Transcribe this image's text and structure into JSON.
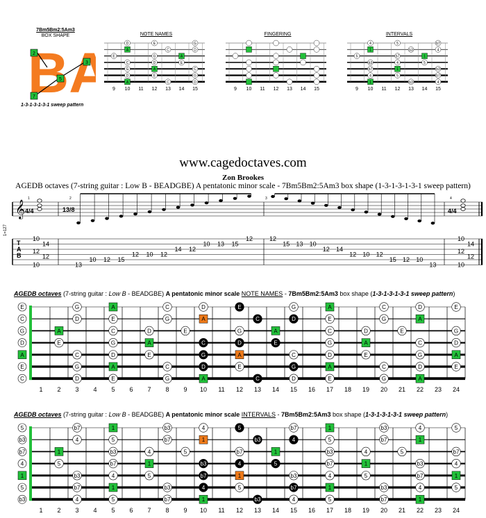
{
  "header": {
    "shape_code": "7Bm5Bm2:5Am3",
    "box_shape_label": "BOX SHAPE",
    "box_letters": "BA",
    "sweep_caption": "1-3-1-3-1-3-1 sweep pattern",
    "logo_dots": [
      "2",
      "3",
      "5",
      "7"
    ],
    "note_names_label": "NOTE NAMES",
    "fingering_label": "FINGERING",
    "intervals_label": "INTERVALS",
    "mini_frets": [
      "9",
      "10",
      "11",
      "12",
      "13",
      "14",
      "15"
    ]
  },
  "site": {
    "url": "www.cagedoctaves.com",
    "author": "Zon Brookes",
    "subtitle": "AGEDB octaves (7-string guitar : Low B - BEADGBE) A pentatonic minor scale  - 7Bm5Bm2:5Am3 box shape (1-3-1-3-1-3-1 sweep pattern)"
  },
  "notation": {
    "time1": "4/4",
    "time2": "13/8",
    "measure_numbers": [
      "1",
      "2",
      "3",
      "4"
    ],
    "side_label": "1=127",
    "tab_letters": "TAB",
    "m1_tab": [
      "10",
      "14",
      "12",
      "12",
      "10"
    ],
    "m2_tab": [
      "13",
      "10",
      "12",
      "15",
      "12",
      "10",
      "12",
      "14",
      "12",
      "10",
      "13",
      "15",
      "12"
    ],
    "m3_tab": [
      "12",
      "15",
      "13",
      "10",
      "12",
      "14",
      "12",
      "10",
      "12",
      "15",
      "12",
      "10",
      "13"
    ],
    "m4_tab": [
      "10",
      "14",
      "12",
      "12",
      "10"
    ]
  },
  "diagram1": {
    "title_a": "AGEDB octaves",
    "title_b": " (7-string guitar : ",
    "title_c": "Low B",
    "title_d": " - BEADGBE) ",
    "title_e": "A pentatonic minor scale ",
    "title_f": "NOTE NAMES",
    "title_g": " - ",
    "title_h": "7Bm5Bm2:5Am3",
    "title_i": " box shape (",
    "title_j": "1-3-1-3-1-3-1 sweep pattern",
    "title_k": ")"
  },
  "diagram2": {
    "title_a": "AGEDB octaves",
    "title_b": " (7-string guitar : ",
    "title_c": "Low B",
    "title_d": " - BEADGBE) ",
    "title_e": "A pentatonic minor scale ",
    "title_f": "INTERVALS",
    "title_g": " - ",
    "title_h": "7Bm5Bm2:5Am3",
    "title_i": " box shape (",
    "title_j": "1-3-1-3-1-3-1 sweep pattern",
    "title_k": ")"
  },
  "fret_numbers": [
    "1",
    "2",
    "3",
    "4",
    "5",
    "6",
    "7",
    "8",
    "9",
    "10",
    "11",
    "12",
    "13",
    "14",
    "15",
    "16",
    "17",
    "18",
    "19",
    "20",
    "21",
    "22",
    "23",
    "24"
  ],
  "open_notes": [
    "E",
    "C",
    "G",
    "D",
    "A",
    "E",
    "C"
  ],
  "open_intervals": [
    "5",
    "b3",
    "b7",
    "4",
    "1",
    "5",
    "b3"
  ],
  "note_rows": [
    [
      [
        "3",
        "G"
      ],
      [
        "5",
        "A"
      ],
      [
        "8",
        "C"
      ],
      [
        "10",
        "D"
      ],
      [
        "12",
        "E"
      ],
      [
        "15",
        "G"
      ],
      [
        "17",
        "A"
      ],
      [
        "20",
        "C"
      ],
      [
        "22",
        "D"
      ],
      [
        "24",
        "E"
      ]
    ],
    [
      [
        "3",
        "D"
      ],
      [
        "5",
        "E"
      ],
      [
        "8",
        "G"
      ],
      [
        "10",
        "A"
      ],
      [
        "13",
        "C"
      ],
      [
        "15",
        "D"
      ],
      [
        "17",
        "E"
      ],
      [
        "20",
        "G"
      ],
      [
        "22",
        "A"
      ]
    ],
    [
      [
        "2",
        "A"
      ],
      [
        "5",
        "C"
      ],
      [
        "7",
        "D"
      ],
      [
        "9",
        "E"
      ],
      [
        "12",
        "G"
      ],
      [
        "14",
        "A"
      ],
      [
        "17",
        "C"
      ],
      [
        "19",
        "D"
      ],
      [
        "21",
        "E"
      ],
      [
        "24",
        "G"
      ]
    ],
    [
      [
        "2",
        "E"
      ],
      [
        "5",
        "G"
      ],
      [
        "7",
        "A"
      ],
      [
        "10",
        "C"
      ],
      [
        "12",
        "D"
      ],
      [
        "14",
        "E"
      ],
      [
        "17",
        "G"
      ],
      [
        "19",
        "A"
      ],
      [
        "22",
        "C"
      ],
      [
        "24",
        "D"
      ]
    ],
    [
      [
        "3",
        "C"
      ],
      [
        "5",
        "D"
      ],
      [
        "7",
        "E"
      ],
      [
        "10",
        "G"
      ],
      [
        "12",
        "A"
      ],
      [
        "15",
        "C"
      ],
      [
        "17",
        "D"
      ],
      [
        "19",
        "E"
      ],
      [
        "22",
        "G"
      ],
      [
        "24",
        "A"
      ]
    ],
    [
      [
        "3",
        "G"
      ],
      [
        "5",
        "A"
      ],
      [
        "8",
        "C"
      ],
      [
        "10",
        "D"
      ],
      [
        "12",
        "E"
      ],
      [
        "15",
        "G"
      ],
      [
        "17",
        "A"
      ],
      [
        "20",
        "C"
      ],
      [
        "22",
        "D"
      ],
      [
        "24",
        "E"
      ]
    ],
    [
      [
        "3",
        "D"
      ],
      [
        "5",
        "E"
      ],
      [
        "8",
        "G"
      ],
      [
        "10",
        "A"
      ],
      [
        "13",
        "C"
      ],
      [
        "15",
        "D"
      ],
      [
        "17",
        "E"
      ],
      [
        "20",
        "G"
      ],
      [
        "22",
        "A"
      ]
    ]
  ],
  "interval_rows": [
    [
      [
        "3",
        "b7"
      ],
      [
        "5",
        "1"
      ],
      [
        "8",
        "b3"
      ],
      [
        "10",
        "4"
      ],
      [
        "12",
        "5"
      ],
      [
        "15",
        "b7"
      ],
      [
        "17",
        "1"
      ],
      [
        "20",
        "b3"
      ],
      [
        "22",
        "4"
      ],
      [
        "24",
        "5"
      ]
    ],
    [
      [
        "3",
        "4"
      ],
      [
        "5",
        "5"
      ],
      [
        "8",
        "b7"
      ],
      [
        "10",
        "1"
      ],
      [
        "13",
        "b3"
      ],
      [
        "15",
        "4"
      ],
      [
        "17",
        "5"
      ],
      [
        "20",
        "b7"
      ],
      [
        "22",
        "1"
      ]
    ],
    [
      [
        "2",
        "1"
      ],
      [
        "5",
        "b3"
      ],
      [
        "7",
        "4"
      ],
      [
        "9",
        "5"
      ],
      [
        "12",
        "b7"
      ],
      [
        "14",
        "1"
      ],
      [
        "17",
        "b3"
      ],
      [
        "19",
        "4"
      ],
      [
        "21",
        "5"
      ],
      [
        "24",
        "b7"
      ]
    ],
    [
      [
        "2",
        "5"
      ],
      [
        "5",
        "b7"
      ],
      [
        "7",
        "1"
      ],
      [
        "10",
        "b3"
      ],
      [
        "12",
        "4"
      ],
      [
        "14",
        "5"
      ],
      [
        "17",
        "b7"
      ],
      [
        "19",
        "1"
      ],
      [
        "22",
        "b3"
      ],
      [
        "24",
        "4"
      ]
    ],
    [
      [
        "3",
        "b3"
      ],
      [
        "5",
        "4"
      ],
      [
        "7",
        "5"
      ],
      [
        "10",
        "b7"
      ],
      [
        "12",
        "1"
      ],
      [
        "15",
        "b3"
      ],
      [
        "17",
        "4"
      ],
      [
        "19",
        "5"
      ],
      [
        "22",
        "b7"
      ],
      [
        "24",
        "1"
      ]
    ],
    [
      [
        "3",
        "b7"
      ],
      [
        "5",
        "1"
      ],
      [
        "8",
        "b3"
      ],
      [
        "10",
        "4"
      ],
      [
        "12",
        "5"
      ],
      [
        "15",
        "b7"
      ],
      [
        "17",
        "1"
      ],
      [
        "20",
        "b3"
      ],
      [
        "22",
        "4"
      ],
      [
        "24",
        "5"
      ]
    ],
    [
      [
        "3",
        "4"
      ],
      [
        "5",
        "5"
      ],
      [
        "8",
        "b7"
      ],
      [
        "10",
        "1"
      ],
      [
        "13",
        "b3"
      ],
      [
        "15",
        "4"
      ],
      [
        "17",
        "5"
      ],
      [
        "20",
        "b7"
      ],
      [
        "22",
        "1"
      ]
    ]
  ],
  "highlights": {
    "black": [
      "0-12",
      "1-13",
      "1-15",
      "3-10",
      "3-12",
      "3-14",
      "4-10",
      "4-12",
      "5-10",
      "5-15",
      "6-13"
    ],
    "orange": [
      "1-10",
      "4-12"
    ]
  },
  "colors": {
    "root_green": "#22c03a",
    "highlight_orange": "#ee7a1a",
    "logo_orange": "#f47b20",
    "box_black": "#000000"
  }
}
